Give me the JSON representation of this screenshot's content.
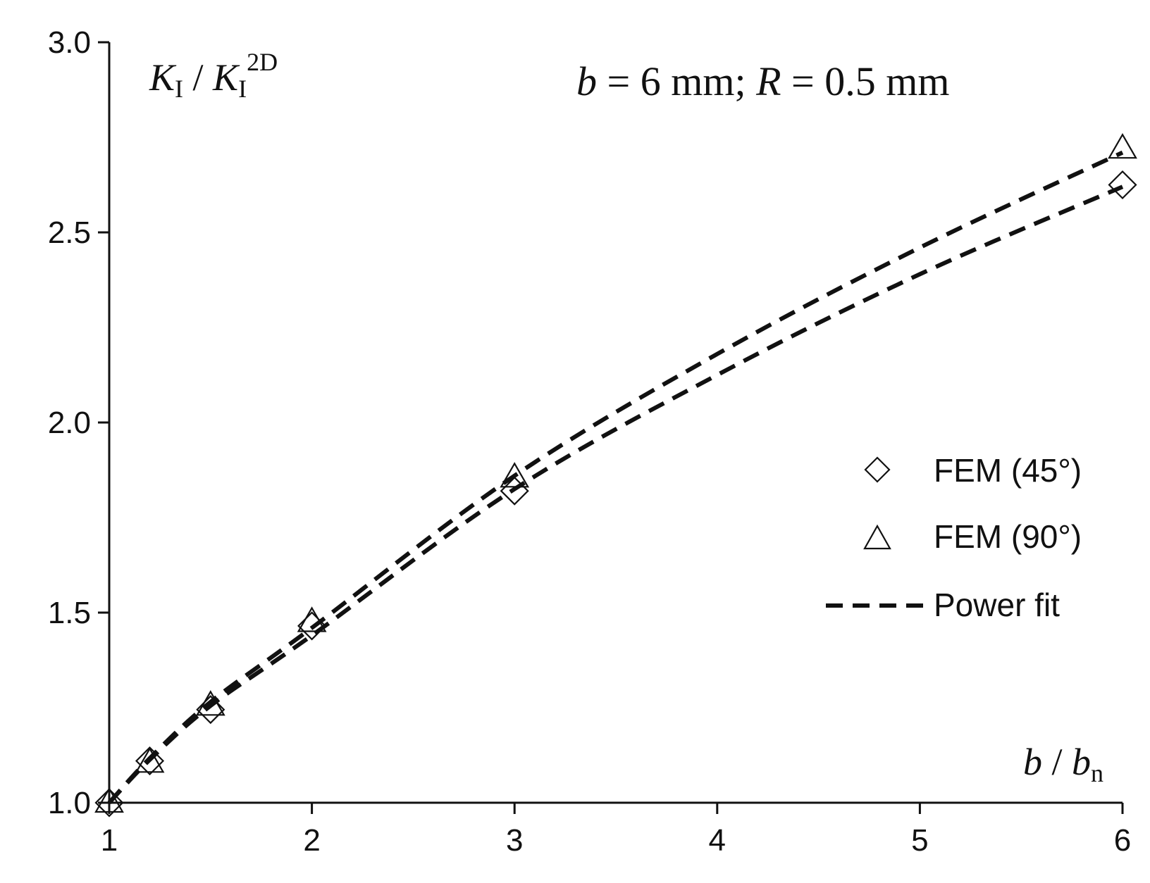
{
  "chart_data": {
    "type": "scatter",
    "ylabel_parts": {
      "main": "K",
      "sub1": "I",
      "sep": " / ",
      "main2": "K",
      "sub2": "I",
      "sup2": "2D"
    },
    "xlabel_parts": {
      "main": "b",
      "sep": " / ",
      "main2": "b",
      "sub2": "n"
    },
    "annotation_parts": {
      "v1": "b",
      "t1": " = 6 mm; ",
      "v2": "R",
      "t2": " = 0.5 mm"
    },
    "xlim": [
      1,
      6
    ],
    "ylim": [
      1.0,
      3.0
    ],
    "x_ticks": [
      "1",
      "2",
      "3",
      "4",
      "5",
      "6"
    ],
    "y_ticks": [
      "1.0",
      "1.5",
      "2.0",
      "2.5",
      "3.0"
    ],
    "legend": {
      "placement": "center-right"
    },
    "series": [
      {
        "name": "FEM (45°)",
        "marker": "diamond",
        "x": [
          1,
          1.2,
          1.5,
          2,
          3,
          6
        ],
        "y": [
          1.0,
          1.11,
          1.245,
          1.465,
          1.82,
          2.625
        ]
      },
      {
        "name": "FEM (90°)",
        "marker": "triangle",
        "x": [
          1,
          1.2,
          1.5,
          2,
          3,
          6
        ],
        "y": [
          1.0,
          1.105,
          1.255,
          1.475,
          1.855,
          2.72
        ]
      },
      {
        "name": "Power fit",
        "marker": "dashed-line",
        "fits": [
          {
            "x": [
              1,
              1.2,
              1.5,
              2,
              3,
              4,
              5,
              6
            ],
            "y": [
              1.0,
              1.113,
              1.255,
              1.44,
              1.825,
              2.125,
              2.39,
              2.62
            ]
          },
          {
            "x": [
              1,
              1.2,
              1.5,
              2,
              3,
              4,
              5,
              6
            ],
            "y": [
              1.0,
              1.117,
              1.265,
              1.46,
              1.86,
              2.18,
              2.46,
              2.71
            ]
          }
        ]
      }
    ]
  }
}
